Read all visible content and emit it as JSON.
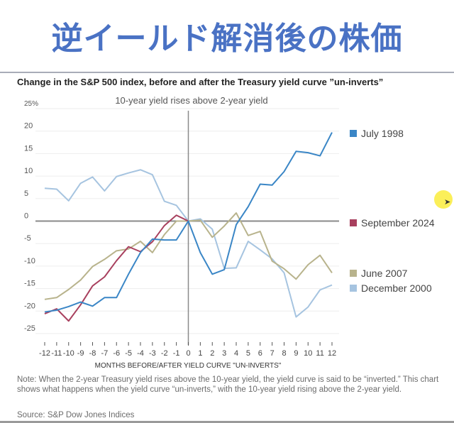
{
  "banner": {
    "title": "逆イールド解消後の株価"
  },
  "chart_data": {
    "type": "line",
    "title": "Change in the S&P 500 index, before and after the Treasury yield curve ”un-inverts”",
    "subtitle": "10-year yield rises above 2-year yield",
    "xlabel": "MONTHS BEFORE/AFTER YIELD CURVE \"UN-INVERTS\"",
    "ylabel": "",
    "x": [
      -12,
      -11,
      -10,
      -9,
      -8,
      -7,
      -6,
      -5,
      -4,
      -3,
      -2,
      -1,
      0,
      1,
      2,
      3,
      4,
      5,
      6,
      7,
      8,
      9,
      10,
      11,
      12
    ],
    "x_tick_labels": [
      "-12",
      "-11",
      "-10",
      "-9",
      "-8",
      "-7",
      "-6",
      "-5",
      "-4",
      "-3",
      "-2",
      "-1",
      "0",
      "1",
      "2",
      "3",
      "4",
      "5",
      "6",
      "7",
      "8",
      "9",
      "10",
      "11",
      "12"
    ],
    "y_ticks": [
      25,
      20,
      15,
      10,
      5,
      0,
      -5,
      -10,
      -15,
      -20,
      -25
    ],
    "y_tick_labels": [
      "25%",
      "20",
      "15",
      "10",
      "5",
      "0",
      "-5",
      "-10",
      "-15",
      "-20",
      "-25"
    ],
    "ylim": [
      -25,
      25
    ],
    "xlim": [
      -12,
      12
    ],
    "grid": true,
    "legend_placement": "right",
    "series": [
      {
        "name": "July 1998",
        "color": "#3a86c6",
        "values": [
          -20.2,
          -19.8,
          -19.0,
          -18.0,
          -18.9,
          -17.0,
          -17.0,
          -11.8,
          -7.0,
          -4.0,
          -4.2,
          -4.2,
          0,
          -7.0,
          -11.8,
          -10.8,
          -0.8,
          3.2,
          8.2,
          8.0,
          11.0,
          15.5,
          15.2,
          14.5,
          19.7
        ]
      },
      {
        "name": "September 2024",
        "color": "#a8405e",
        "values": [
          -20.6,
          -19.5,
          -22.2,
          -18.6,
          -14.4,
          -12.4,
          -8.8,
          -5.7,
          -6.8,
          -4.6,
          -1.0,
          1.3,
          0
        ]
      },
      {
        "name": "June 2007",
        "color": "#b8b38c",
        "values": [
          -17.4,
          -17.0,
          -15.2,
          -13.1,
          -10.1,
          -8.5,
          -6.6,
          -6.2,
          -4.5,
          -7.0,
          -3.0,
          0,
          0,
          0.2,
          -3.6,
          -1.1,
          1.8,
          -3.2,
          -2.3,
          -8.9,
          -10.6,
          -12.9,
          -9.7,
          -7.6,
          -11.5
        ]
      },
      {
        "name": "December 2000",
        "color": "#a6c4e0",
        "values": [
          7.3,
          7.1,
          4.5,
          8.4,
          9.8,
          6.7,
          9.9,
          10.7,
          11.4,
          10.3,
          4.4,
          3.5,
          0,
          0.5,
          -1.8,
          -10.5,
          -10.4,
          -4.5,
          -6.4,
          -8.4,
          -11.5,
          -21.3,
          -19.1,
          -15.3,
          -14.2
        ]
      }
    ]
  },
  "note": "Note: When the 2-year Treasury yield rises above the 10-year yield, the yield curve is said to be “inverted.” This chart shows what happens when the yield curve “un-inverts,” with the 10-year yield rising above the 2-year yield.",
  "source": "Source: S&P Dow Jones Indices"
}
